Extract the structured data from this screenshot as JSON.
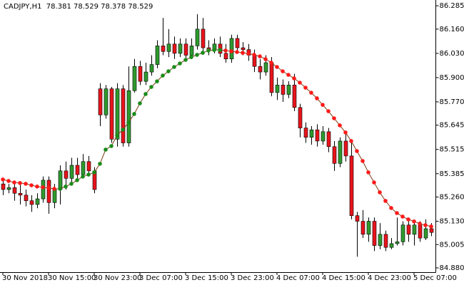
{
  "chart_data": {
    "type": "candlestick",
    "title": "CADJPY,H1  78.381 78.529 78.378 78.529",
    "open": [
      85.33,
      85.3,
      85.31,
      85.28,
      85.27,
      85.24,
      85.22,
      85.25,
      85.35,
      85.23,
      85.3,
      85.4,
      85.36,
      85.43,
      85.38,
      85.45,
      85.4,
      85.84,
      85.7,
      85.84,
      85.57,
      85.84,
      85.55,
      85.83,
      85.96,
      85.88,
      85.93,
      85.97,
      86.07,
      86.04,
      86.08,
      86.03,
      86.08,
      86.02,
      86.07,
      86.16,
      86.06,
      86.05,
      86.08,
      86.03,
      86.0,
      86.11,
      86.06,
      86.05,
      86.02,
      85.96,
      85.93,
      85.98,
      85.82,
      85.86,
      85.81,
      85.86,
      85.74,
      85.63,
      85.58,
      85.62,
      85.56,
      85.61,
      85.53,
      85.44,
      85.56,
      85.48,
      85.16,
      85.13,
      85.06,
      85.13,
      85.0,
      85.06,
      84.99,
      85.01,
      85.02,
      85.11,
      85.06,
      85.11,
      85.04,
      85.09
    ],
    "high": [
      85.35,
      85.33,
      85.34,
      85.33,
      85.3,
      85.27,
      85.28,
      85.37,
      85.37,
      85.33,
      85.43,
      85.45,
      85.47,
      85.47,
      85.49,
      85.48,
      85.42,
      85.87,
      85.86,
      85.85,
      85.87,
      85.86,
      85.96,
      86.0,
      85.99,
      85.98,
      86.02,
      86.1,
      86.22,
      86.16,
      86.12,
      86.11,
      86.11,
      86.11,
      86.24,
      86.22,
      86.1,
      86.11,
      86.12,
      86.08,
      86.13,
      86.13,
      86.09,
      86.08,
      86.05,
      86.0,
      86.02,
      86.01,
      85.9,
      85.89,
      85.88,
      85.92,
      85.76,
      85.66,
      85.64,
      85.65,
      85.64,
      85.63,
      85.56,
      85.58,
      85.6,
      85.55,
      85.18,
      85.19,
      85.15,
      85.15,
      85.12,
      85.08,
      85.04,
      85.15,
      85.13,
      85.14,
      85.12,
      85.13,
      85.14,
      85.12
    ],
    "low": [
      85.27,
      85.28,
      85.24,
      85.22,
      85.21,
      85.18,
      85.2,
      85.23,
      85.17,
      85.2,
      85.22,
      85.3,
      85.33,
      85.35,
      85.36,
      85.37,
      85.28,
      85.64,
      85.68,
      85.55,
      85.53,
      85.53,
      85.53,
      85.82,
      85.86,
      85.86,
      85.91,
      85.95,
      86.02,
      86.01,
      86.0,
      86.01,
      86.0,
      86.0,
      86.05,
      86.04,
      86.02,
      86.03,
      86.01,
      85.98,
      85.98,
      86.03,
      86.02,
      85.99,
      85.93,
      85.89,
      85.91,
      85.8,
      85.78,
      85.77,
      85.79,
      85.72,
      85.58,
      85.55,
      85.54,
      85.53,
      85.54,
      85.5,
      85.4,
      85.42,
      85.45,
      85.14,
      84.94,
      85.04,
      85.02,
      84.97,
      84.98,
      84.97,
      84.98,
      85.0,
      85.0,
      85.02,
      85.0,
      85.02,
      85.03,
      85.05
    ],
    "close": [
      85.3,
      85.31,
      85.28,
      85.27,
      85.24,
      85.22,
      85.25,
      85.35,
      85.23,
      85.3,
      85.4,
      85.36,
      85.43,
      85.38,
      85.45,
      85.4,
      85.3,
      85.7,
      85.84,
      85.57,
      85.84,
      85.55,
      85.83,
      85.96,
      85.88,
      85.93,
      85.97,
      86.07,
      86.04,
      86.08,
      86.03,
      86.08,
      86.02,
      86.07,
      86.16,
      86.06,
      86.05,
      86.08,
      86.03,
      86.0,
      86.11,
      86.06,
      86.05,
      86.02,
      85.96,
      85.93,
      85.98,
      85.82,
      85.86,
      85.81,
      85.86,
      85.74,
      85.63,
      85.58,
      85.62,
      85.56,
      85.61,
      85.53,
      85.44,
      85.56,
      85.48,
      85.16,
      85.13,
      85.06,
      85.13,
      85.0,
      85.06,
      84.99,
      85.01,
      85.02,
      85.11,
      85.06,
      85.11,
      85.04,
      85.09,
      85.07
    ],
    "up_color": "#2e9a2e",
    "down_color": "#e8141c",
    "wick_color": "#000000",
    "overlay": {
      "values": [
        85.354,
        85.346,
        85.338,
        85.335,
        85.331,
        85.323,
        85.316,
        85.312,
        85.308,
        85.304,
        85.304,
        85.316,
        85.331,
        85.35,
        85.369,
        85.38,
        85.392,
        85.438,
        85.514,
        85.533,
        85.59,
        85.621,
        85.659,
        85.705,
        85.762,
        85.812,
        85.85,
        85.88,
        85.911,
        85.934,
        85.957,
        85.976,
        85.995,
        86.01,
        86.022,
        86.033,
        86.045,
        86.048,
        86.048,
        86.045,
        86.041,
        86.037,
        86.033,
        86.029,
        86.022,
        86.014,
        85.999,
        85.98,
        85.957,
        85.934,
        85.915,
        85.896,
        85.873,
        85.846,
        85.819,
        85.789,
        85.754,
        85.72,
        85.682,
        85.644,
        85.606,
        85.56,
        85.506,
        85.453,
        85.392,
        85.338,
        85.285,
        85.239,
        85.201,
        85.174,
        85.155,
        85.14,
        85.129,
        85.117,
        85.109,
        85.102
      ],
      "up_color": "#1a8c1a",
      "down_color": "#ff1a1a",
      "line_color": "#7a3b10"
    },
    "ylim": [
      84.857,
      86.316
    ],
    "yticks": [
      86.285,
      {
        "value": 86.16,
        "label": "86.160"
      },
      {
        "value": 86.03,
        "label": "86.030"
      },
      {
        "value": 85.9,
        "label": "85.900"
      },
      {
        "value": 85.77,
        "label": "85.770"
      },
      85.645,
      85.515,
      85.385,
      {
        "value": 85.26,
        "label": "85.260"
      },
      {
        "value": 85.13,
        "label": "85.130"
      },
      85.005,
      {
        "value": 84.88,
        "label": "84.880"
      }
    ],
    "xticks": [
      {
        "value": 0,
        "label": "30 Nov 2018"
      },
      {
        "value": 8,
        "label": "30 Nov 15:00"
      },
      {
        "value": 16,
        "label": "30 Nov 23:00"
      },
      {
        "value": 24,
        "label": "3 Dec 07:00"
      },
      {
        "value": 32,
        "label": "3 Dec 15:00"
      },
      {
        "value": 40,
        "label": "3 Dec 23:00"
      },
      {
        "value": 48,
        "label": "4 Dec 07:00"
      },
      {
        "value": 56,
        "label": "4 Dec 15:00"
      },
      {
        "value": 64,
        "label": "4 Dec 23:00"
      },
      {
        "value": 72,
        "label": "5 Dec 07:00"
      }
    ],
    "grid": false
  }
}
